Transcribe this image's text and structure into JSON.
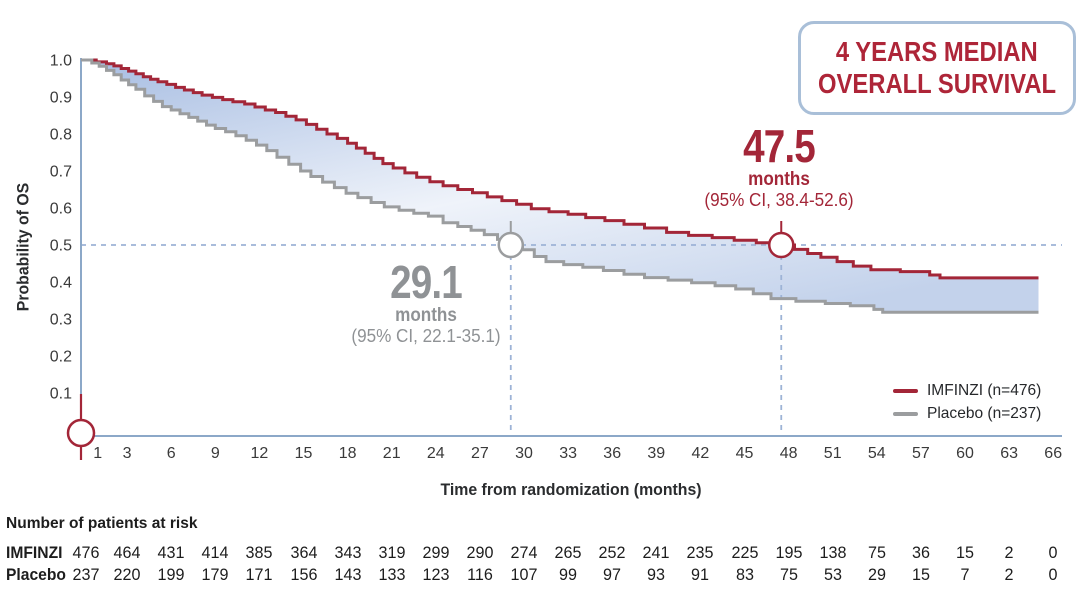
{
  "badge": {
    "line1": "4 YEARS MEDIAN",
    "line2": "OVERALL SURVIVAL",
    "text_color": "#AE2538",
    "border_color": "#A9BFD8"
  },
  "legend": {
    "items": [
      {
        "label": "IMFINZI (n=476)",
        "color": "#A32638"
      },
      {
        "label": "Placebo (n=237)",
        "color": "#9B9D9F"
      }
    ]
  },
  "chart_data": {
    "type": "line",
    "subtype": "kaplan-meier-step",
    "xlabel": "Time from randomization (months)",
    "ylabel": "Probability of OS",
    "xlim": [
      0,
      66.5
    ],
    "ylim": [
      0,
      1.0
    ],
    "grid": false,
    "x_ticks": [
      1,
      3,
      6,
      9,
      12,
      15,
      18,
      21,
      24,
      27,
      30,
      33,
      36,
      39,
      42,
      45,
      48,
      51,
      54,
      57,
      60,
      63,
      66
    ],
    "y_tick_labels": [
      "1.0",
      "0.9",
      "0.8",
      "0.7",
      "0.6",
      "0.5",
      "0.4",
      "0.3",
      "0.2",
      "0.1"
    ],
    "reference_line_y": 0.5,
    "axis_color": "#8CA8C8",
    "dash_color": "#9DB3D6",
    "band_gradient": [
      "#A7BDE2",
      "#EFF3FA",
      "#C3D2EB"
    ],
    "series": [
      {
        "name": "IMFINZI (n=476)",
        "color": "#A32638",
        "median": {
          "months": 47.5,
          "value": "47.5",
          "unit": "months",
          "ci": "(95% CI, 38.4-52.6)"
        },
        "steps": [
          [
            0,
            1.0
          ],
          [
            0.9,
            0.995
          ],
          [
            1.6,
            0.99
          ],
          [
            2.1,
            0.984
          ],
          [
            2.6,
            0.977
          ],
          [
            3.1,
            0.97
          ],
          [
            3.6,
            0.963
          ],
          [
            4.1,
            0.955
          ],
          [
            4.6,
            0.948
          ],
          [
            5.1,
            0.941
          ],
          [
            5.7,
            0.934
          ],
          [
            6.3,
            0.926
          ],
          [
            6.9,
            0.919
          ],
          [
            7.5,
            0.912
          ],
          [
            8.1,
            0.905
          ],
          [
            8.8,
            0.899
          ],
          [
            9.5,
            0.893
          ],
          [
            10.2,
            0.887
          ],
          [
            11,
            0.881
          ],
          [
            11.7,
            0.873
          ],
          [
            12.4,
            0.865
          ],
          [
            13.1,
            0.858
          ],
          [
            13.8,
            0.848
          ],
          [
            14.5,
            0.838
          ],
          [
            15.2,
            0.826
          ],
          [
            15.9,
            0.813
          ],
          [
            16.6,
            0.8
          ],
          [
            17.3,
            0.788
          ],
          [
            18,
            0.775
          ],
          [
            18.6,
            0.762
          ],
          [
            19.2,
            0.748
          ],
          [
            19.8,
            0.734
          ],
          [
            20.4,
            0.72
          ],
          [
            21.1,
            0.708
          ],
          [
            21.9,
            0.695
          ],
          [
            22.7,
            0.683
          ],
          [
            23.6,
            0.671
          ],
          [
            24.5,
            0.66
          ],
          [
            25.5,
            0.65
          ],
          [
            26.5,
            0.641
          ],
          [
            27.5,
            0.63
          ],
          [
            28.5,
            0.62
          ],
          [
            29.5,
            0.61
          ],
          [
            30.5,
            0.598
          ],
          [
            31.7,
            0.59
          ],
          [
            33,
            0.583
          ],
          [
            34.2,
            0.574
          ],
          [
            35.5,
            0.566
          ],
          [
            36.8,
            0.556
          ],
          [
            38.2,
            0.546
          ],
          [
            39.7,
            0.534
          ],
          [
            41.2,
            0.526
          ],
          [
            42.8,
            0.52
          ],
          [
            44.3,
            0.513
          ],
          [
            45.8,
            0.506
          ],
          [
            47.5,
            0.5
          ],
          [
            48.4,
            0.488
          ],
          [
            49.3,
            0.477
          ],
          [
            50.2,
            0.467
          ],
          [
            51.3,
            0.455
          ],
          [
            52.4,
            0.443
          ],
          [
            53.6,
            0.433
          ],
          [
            55.6,
            0.428
          ],
          [
            57.6,
            0.419
          ],
          [
            58.3,
            0.411
          ],
          [
            65,
            0.411
          ]
        ]
      },
      {
        "name": "Placebo (n=237)",
        "color": "#9B9D9F",
        "median": {
          "months": 29.1,
          "value": "29.1",
          "unit": "months",
          "ci": "(95% CI, 22.1-35.1)"
        },
        "steps": [
          [
            0,
            1.0
          ],
          [
            0.6,
            0.992
          ],
          [
            1.1,
            0.983
          ],
          [
            1.6,
            0.972
          ],
          [
            2.1,
            0.96
          ],
          [
            2.6,
            0.946
          ],
          [
            3.1,
            0.933
          ],
          [
            3.6,
            0.921
          ],
          [
            4.2,
            0.903
          ],
          [
            4.8,
            0.888
          ],
          [
            5.4,
            0.874
          ],
          [
            6,
            0.865
          ],
          [
            6.6,
            0.855
          ],
          [
            7.2,
            0.845
          ],
          [
            7.8,
            0.835
          ],
          [
            8.4,
            0.824
          ],
          [
            9,
            0.815
          ],
          [
            9.7,
            0.806
          ],
          [
            10.4,
            0.795
          ],
          [
            11.1,
            0.783
          ],
          [
            11.8,
            0.77
          ],
          [
            12.5,
            0.755
          ],
          [
            13.2,
            0.737
          ],
          [
            14,
            0.718
          ],
          [
            14.8,
            0.7
          ],
          [
            15.5,
            0.685
          ],
          [
            16.3,
            0.67
          ],
          [
            17.1,
            0.655
          ],
          [
            17.9,
            0.64
          ],
          [
            18.7,
            0.628
          ],
          [
            19.6,
            0.615
          ],
          [
            20.5,
            0.603
          ],
          [
            21.5,
            0.594
          ],
          [
            22.5,
            0.586
          ],
          [
            23.5,
            0.578
          ],
          [
            24.5,
            0.56
          ],
          [
            25.5,
            0.55
          ],
          [
            26.4,
            0.54
          ],
          [
            27.3,
            0.528
          ],
          [
            28.2,
            0.515
          ],
          [
            29.1,
            0.5
          ],
          [
            29.9,
            0.487
          ],
          [
            30.7,
            0.469
          ],
          [
            31.5,
            0.455
          ],
          [
            32.7,
            0.447
          ],
          [
            34,
            0.44
          ],
          [
            35.4,
            0.431
          ],
          [
            36.8,
            0.421
          ],
          [
            38.2,
            0.412
          ],
          [
            39.8,
            0.405
          ],
          [
            41.4,
            0.398
          ],
          [
            43,
            0.39
          ],
          [
            44.4,
            0.381
          ],
          [
            45.6,
            0.368
          ],
          [
            46.8,
            0.355
          ],
          [
            48.5,
            0.348
          ],
          [
            50.5,
            0.342
          ],
          [
            52.2,
            0.336
          ],
          [
            53.8,
            0.326
          ],
          [
            54.4,
            0.318
          ],
          [
            65,
            0.318
          ]
        ]
      }
    ]
  },
  "risk_table": {
    "header": "Number of patients at risk",
    "rows": [
      {
        "label": "IMFINZI",
        "counts": [
          476,
          464,
          431,
          414,
          385,
          364,
          343,
          319,
          299,
          290,
          274,
          265,
          252,
          241,
          235,
          225,
          195,
          138,
          75,
          36,
          15,
          2,
          0
        ]
      },
      {
        "label": "Placebo",
        "counts": [
          237,
          220,
          199,
          179,
          171,
          156,
          143,
          133,
          123,
          116,
          107,
          99,
          97,
          93,
          91,
          83,
          75,
          53,
          29,
          15,
          7,
          2,
          0
        ]
      }
    ]
  }
}
